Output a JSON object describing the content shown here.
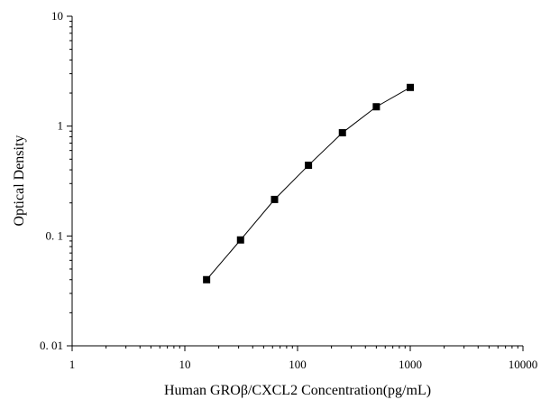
{
  "chart_data": {
    "type": "line",
    "xlabel": "Human GROβ/CXCL2 Concentration(pg/mL)",
    "ylabel": "Optical Density",
    "xscale": "log",
    "yscale": "log",
    "xlim": [
      1,
      10000
    ],
    "ylim": [
      0.01,
      10
    ],
    "x_ticks": [
      1,
      10,
      100,
      1000,
      10000
    ],
    "x_tick_labels": [
      "1",
      "10",
      "100",
      "1000",
      "10000"
    ],
    "y_ticks": [
      0.01,
      0.1,
      1,
      10
    ],
    "y_tick_labels": [
      "0. 01",
      "0. 1",
      "1",
      "10"
    ],
    "grid": false,
    "series": [
      {
        "x": [
          15.6,
          31.2,
          62.5,
          125,
          250,
          500,
          1000
        ],
        "y": [
          0.04,
          0.092,
          0.215,
          0.44,
          0.87,
          1.5,
          2.25
        ],
        "marker": "square",
        "color": "#000000"
      }
    ]
  }
}
